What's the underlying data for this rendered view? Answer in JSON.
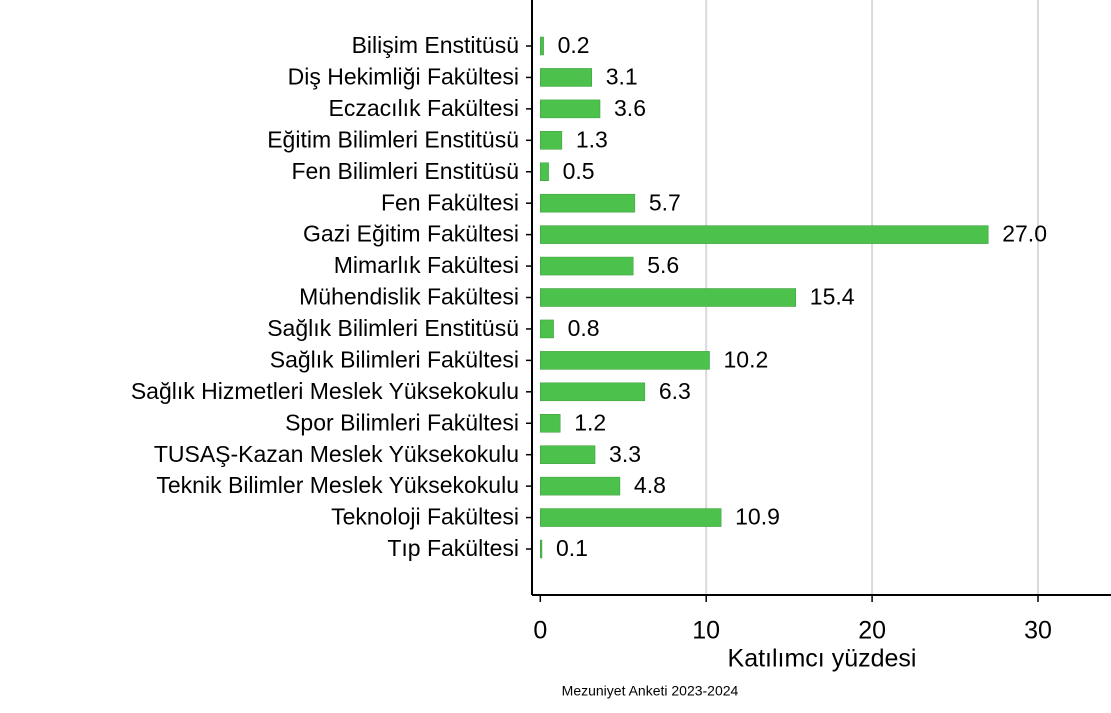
{
  "chart_data": {
    "type": "barh",
    "categories": [
      "Bilişim Enstitüsü",
      "Diş Hekimliği Fakültesi",
      "Eczacılık Fakültesi",
      "Eğitim Bilimleri Enstitüsü",
      "Fen Bilimleri Enstitüsü",
      "Fen Fakültesi",
      "Gazi Eğitim Fakültesi",
      "Mimarlık Fakültesi",
      "Mühendislik Fakültesi",
      "Sağlık Bilimleri Enstitüsü",
      "Sağlık Bilimleri Fakültesi",
      "Sağlık Hizmetleri Meslek Yüksekokulu",
      "Spor Bilimleri Fakültesi",
      "TUSAŞ-Kazan Meslek Yüksekokulu",
      "Teknik Bilimler Meslek Yüksekokulu",
      "Teknoloji Fakültesi",
      "Tıp Fakültesi"
    ],
    "values": [
      0.2,
      3.1,
      3.6,
      1.3,
      0.5,
      5.7,
      27.0,
      5.6,
      15.4,
      0.8,
      10.2,
      6.3,
      1.2,
      3.3,
      4.8,
      10.9,
      0.1
    ],
    "value_labels": [
      "0.2",
      "3.1",
      "3.6",
      "1.3",
      "0.5",
      "5.7",
      "27.0",
      "5.6",
      "15.4",
      "0.8",
      "10.2",
      "6.3",
      "1.2",
      "3.3",
      "4.8",
      "10.9",
      "0.1"
    ],
    "color": "#4cc14c",
    "xlim": [
      -0.5,
      34.4
    ],
    "xticks": [
      0,
      10,
      20,
      30
    ],
    "grid": true,
    "xlabel": "Katılımcı yüzdesi",
    "note": "Mezuniyet Anketi 2023-2024"
  }
}
